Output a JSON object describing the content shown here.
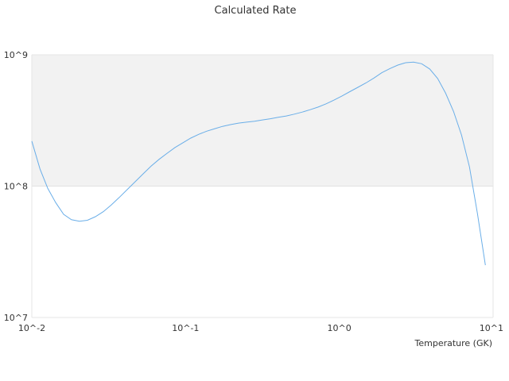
{
  "chart_data": {
    "type": "line",
    "title": "Calculated Rate",
    "xlabel": "Temperature (GK)",
    "ylabel": "",
    "x_scale": "log",
    "y_scale": "log",
    "xlim": [
      0.01,
      10
    ],
    "ylim": [
      10000000,
      1000000000
    ],
    "x_tick_labels": [
      "10^-2",
      "10^-1",
      "10^0",
      "10^1"
    ],
    "y_tick_labels": [
      "10^7",
      "10^8",
      "10^9"
    ],
    "band_fill": "#f2f2f2",
    "line_color": "#6aaee8",
    "series": [
      {
        "x": [
          0.01,
          0.0113,
          0.0127,
          0.0143,
          0.0161,
          0.0181,
          0.0204,
          0.023,
          0.0259,
          0.0292,
          0.0329,
          0.037,
          0.0417,
          0.047,
          0.053,
          0.0597,
          0.0673,
          0.0758,
          0.0854,
          0.0962,
          0.108,
          0.122,
          0.137,
          0.155,
          0.174,
          0.196,
          0.221,
          0.249,
          0.281,
          0.316,
          0.356,
          0.401,
          0.452,
          0.509,
          0.574,
          0.646,
          0.728,
          0.82,
          0.924,
          1.04,
          1.17,
          1.32,
          1.49,
          1.68,
          1.89,
          2.13,
          2.4,
          2.7,
          3.04,
          3.43,
          3.87,
          4.36,
          4.91,
          5.53,
          6.23,
          7.02,
          7.91,
          8.91
        ],
        "values": [
          220000000,
          135000000,
          96000000,
          75000000,
          61000000,
          55500000,
          54000000,
          55000000,
          58500000,
          64000000,
          72000000,
          82000000,
          94000000,
          108000000,
          124000000,
          142000000,
          160000000,
          178000000,
          197000000,
          214000000,
          232000000,
          248000000,
          262000000,
          274000000,
          285000000,
          294000000,
          302000000,
          307000000,
          312000000,
          319000000,
          326000000,
          334000000,
          342000000,
          353000000,
          366000000,
          382000000,
          400000000,
          423000000,
          452000000,
          486000000,
          524000000,
          565000000,
          610000000,
          665000000,
          730000000,
          785000000,
          835000000,
          870000000,
          880000000,
          855000000,
          780000000,
          660000000,
          510000000,
          370000000,
          245000000,
          140000000,
          62000000,
          25000000
        ]
      }
    ]
  }
}
